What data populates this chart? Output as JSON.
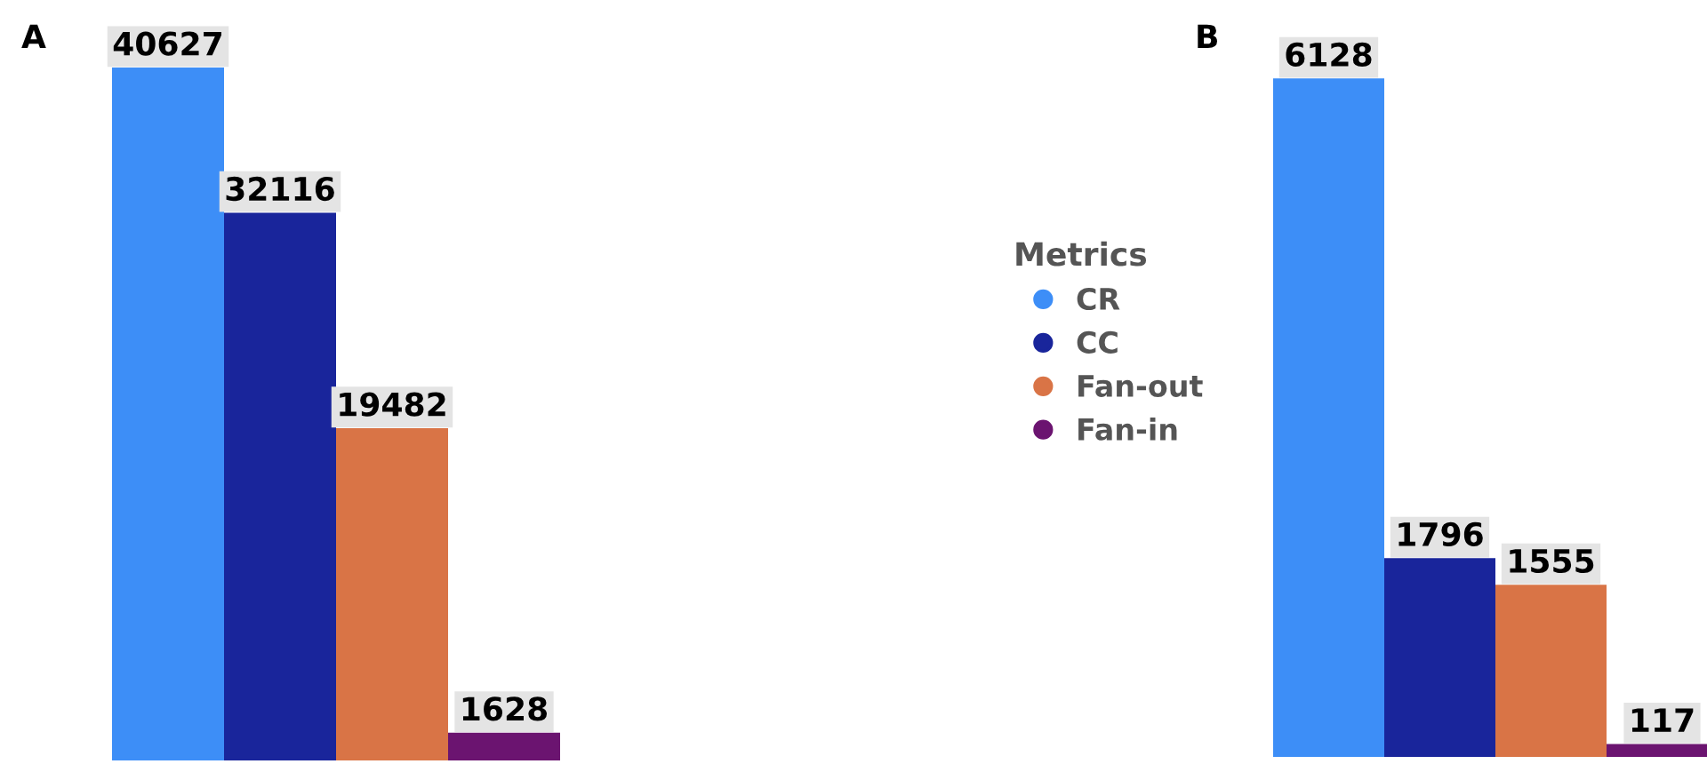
{
  "chart_data": [
    {
      "type": "bar",
      "title": "A",
      "categories": [
        null
      ],
      "data_labels": true,
      "legend": "right",
      "legend_title": "Metrics",
      "series": [
        {
          "name": "CR",
          "color": "#3d8ef7",
          "values": [
            40627
          ]
        },
        {
          "name": "CC",
          "color": "#19259b",
          "values": [
            32116
          ]
        },
        {
          "name": "Fan-out",
          "color": "#d97446",
          "values": [
            19482
          ]
        },
        {
          "name": "Fan-in",
          "color": "#6b1470",
          "values": [
            1628
          ]
        }
      ]
    },
    {
      "type": "bar",
      "title": "B",
      "categories": [
        null
      ],
      "data_labels": true,
      "series": [
        {
          "color": "#3d8ef7",
          "values": [
            6128
          ]
        },
        {
          "color": "#19259b",
          "values": [
            1796
          ]
        },
        {
          "color": "#d97446",
          "values": [
            1555
          ]
        },
        {
          "color": "#6b1470",
          "values": [
            117
          ]
        }
      ]
    }
  ]
}
